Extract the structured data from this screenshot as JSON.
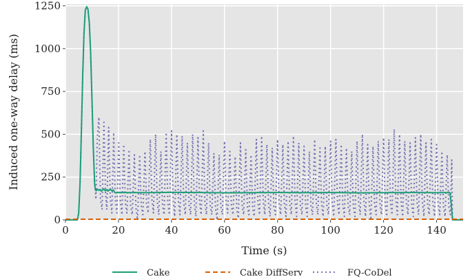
{
  "chart_data": {
    "type": "line",
    "title": "",
    "xlabel": "Time (s)",
    "ylabel": "Induced one-way delay (ms)",
    "xlim": [
      0,
      150
    ],
    "ylim": [
      0,
      1260
    ],
    "xticks": [
      0,
      20,
      40,
      60,
      80,
      100,
      120,
      140
    ],
    "yticks": [
      0,
      250,
      500,
      750,
      1000,
      1250
    ],
    "grid": true,
    "background": "#e5e5e5",
    "legend_position": "bottom",
    "series": [
      {
        "name": "Cake",
        "color": "#1b9e77",
        "style": "solid",
        "points": [
          [
            0,
            0
          ],
          [
            4.5,
            0
          ],
          [
            5,
            40
          ],
          [
            5.5,
            220
          ],
          [
            6,
            520
          ],
          [
            6.5,
            840
          ],
          [
            7,
            1090
          ],
          [
            7.5,
            1225
          ],
          [
            8,
            1245
          ],
          [
            8.5,
            1230
          ],
          [
            9,
            1150
          ],
          [
            9.5,
            980
          ],
          [
            10,
            700
          ],
          [
            10.5,
            420
          ],
          [
            11,
            210
          ],
          [
            11.3,
            175
          ],
          [
            11.6,
            170
          ],
          [
            12,
            180
          ],
          [
            12.5,
            172
          ],
          [
            13,
            178
          ],
          [
            13.5,
            168
          ],
          [
            14,
            175
          ],
          [
            14.5,
            180
          ],
          [
            15,
            170
          ],
          [
            15.5,
            176
          ],
          [
            16,
            168
          ],
          [
            16.5,
            174
          ],
          [
            17,
            178
          ],
          [
            17.5,
            170
          ],
          [
            18,
            175
          ],
          [
            18.5,
            162
          ],
          [
            19,
            158
          ],
          [
            20,
            160
          ],
          [
            30,
            159
          ],
          [
            40,
            161
          ],
          [
            50,
            160
          ],
          [
            60,
            158
          ],
          [
            70,
            159
          ],
          [
            80,
            160
          ],
          [
            90,
            159
          ],
          [
            100,
            160
          ],
          [
            110,
            158
          ],
          [
            120,
            159
          ],
          [
            130,
            160
          ],
          [
            140,
            159
          ],
          [
            145,
            160
          ],
          [
            145.5,
            100
          ],
          [
            146,
            0
          ],
          [
            150,
            0
          ]
        ]
      },
      {
        "name": "Cake DiffServ",
        "color": "#d95f02",
        "style": "dashed",
        "points": [
          [
            0,
            4
          ],
          [
            150,
            4
          ]
        ]
      },
      {
        "name": "FQ-CoDel",
        "color": "#7570b3",
        "style": "dotted",
        "points": [
          [
            0,
            0
          ],
          [
            4.5,
            0
          ],
          [
            5,
            40
          ],
          [
            5.5,
            220
          ],
          [
            6,
            520
          ],
          [
            6.5,
            840
          ],
          [
            7,
            1090
          ],
          [
            7.5,
            1225
          ],
          [
            8,
            1245
          ],
          [
            8.5,
            1230
          ],
          [
            9,
            1150
          ],
          [
            9.5,
            980
          ],
          [
            10,
            700
          ],
          [
            10.5,
            420
          ],
          [
            11,
            230
          ],
          [
            11.5,
            120
          ],
          [
            12,
            480
          ],
          [
            12.6,
            600
          ],
          [
            13.2,
            120
          ],
          [
            13.8,
            60
          ],
          [
            14.5,
            570
          ],
          [
            15.1,
            160
          ],
          [
            15.6,
            60
          ],
          [
            16.3,
            540
          ],
          [
            16.9,
            130
          ],
          [
            17.5,
            40
          ],
          [
            18.2,
            510
          ],
          [
            18.8,
            120
          ],
          [
            19.4,
            40
          ],
          [
            20.1,
            450
          ],
          [
            20.7,
            110
          ],
          [
            21.3,
            30
          ],
          [
            22,
            440
          ],
          [
            22.6,
            100
          ],
          [
            23.2,
            40
          ],
          [
            24,
            410
          ],
          [
            24.6,
            80
          ],
          [
            25.2,
            30
          ],
          [
            26,
            380
          ],
          [
            26.6,
            70
          ],
          [
            27.2,
            0
          ],
          [
            28,
            380
          ],
          [
            28.6,
            80
          ],
          [
            29.2,
            30
          ],
          [
            30,
            400
          ],
          [
            30.6,
            90
          ],
          [
            31.2,
            40
          ],
          [
            32,
            470
          ],
          [
            32.6,
            120
          ],
          [
            33.2,
            40
          ],
          [
            34,
            500
          ],
          [
            34.6,
            110
          ],
          [
            35.2,
            30
          ],
          [
            36,
            400
          ],
          [
            36.6,
            90
          ],
          [
            37.2,
            30
          ],
          [
            38,
            510
          ],
          [
            38.6,
            100
          ],
          [
            39.2,
            30
          ],
          [
            40,
            520
          ],
          [
            40.6,
            120
          ],
          [
            41.2,
            20
          ],
          [
            42,
            500
          ],
          [
            42.6,
            110
          ],
          [
            43.2,
            30
          ],
          [
            44,
            490
          ],
          [
            44.6,
            100
          ],
          [
            45.2,
            30
          ],
          [
            46,
            450
          ],
          [
            46.6,
            90
          ],
          [
            47.2,
            30
          ],
          [
            48,
            500
          ],
          [
            48.6,
            100
          ],
          [
            49.2,
            20
          ],
          [
            50,
            480
          ],
          [
            50.6,
            110
          ],
          [
            51.2,
            30
          ],
          [
            52,
            520
          ],
          [
            52.6,
            100
          ],
          [
            53.2,
            30
          ],
          [
            54,
            450
          ],
          [
            54.6,
            90
          ],
          [
            55.2,
            30
          ],
          [
            56,
            390
          ],
          [
            56.6,
            70
          ],
          [
            57.2,
            0
          ],
          [
            58,
            380
          ],
          [
            58.6,
            80
          ],
          [
            59.2,
            30
          ],
          [
            60,
            460
          ],
          [
            60.6,
            100
          ],
          [
            61.2,
            40
          ],
          [
            62,
            400
          ],
          [
            62.6,
            80
          ],
          [
            63.2,
            30
          ],
          [
            64,
            370
          ],
          [
            64.6,
            70
          ],
          [
            65.2,
            10
          ],
          [
            66,
            450
          ],
          [
            66.6,
            90
          ],
          [
            67.2,
            30
          ],
          [
            68,
            410
          ],
          [
            68.6,
            80
          ],
          [
            69.2,
            30
          ],
          [
            70,
            380
          ],
          [
            70.6,
            70
          ],
          [
            71.2,
            20
          ],
          [
            72,
            470
          ],
          [
            72.6,
            100
          ],
          [
            73.2,
            30
          ],
          [
            74,
            490
          ],
          [
            74.6,
            110
          ],
          [
            75.2,
            30
          ],
          [
            76,
            440
          ],
          [
            76.6,
            90
          ],
          [
            77.2,
            20
          ],
          [
            78,
            420
          ],
          [
            78.6,
            80
          ],
          [
            79.2,
            30
          ],
          [
            80,
            470
          ],
          [
            80.6,
            100
          ],
          [
            81.2,
            30
          ],
          [
            82,
            440
          ],
          [
            82.6,
            90
          ],
          [
            83.2,
            20
          ],
          [
            84,
            460
          ],
          [
            84.6,
            100
          ],
          [
            85.2,
            30
          ],
          [
            86,
            490
          ],
          [
            86.6,
            110
          ],
          [
            87.2,
            20
          ],
          [
            88,
            450
          ],
          [
            88.6,
            90
          ],
          [
            89.2,
            30
          ],
          [
            90,
            430
          ],
          [
            90.6,
            80
          ],
          [
            91.2,
            20
          ],
          [
            92,
            400
          ],
          [
            92.6,
            80
          ],
          [
            93.2,
            30
          ],
          [
            94,
            470
          ],
          [
            94.6,
            100
          ],
          [
            95.2,
            30
          ],
          [
            96,
            420
          ],
          [
            96.6,
            90
          ],
          [
            97.2,
            20
          ],
          [
            98,
            430
          ],
          [
            98.6,
            90
          ],
          [
            99.2,
            30
          ],
          [
            100,
            460
          ],
          [
            100.6,
            100
          ],
          [
            101.2,
            20
          ],
          [
            102,
            470
          ],
          [
            102.6,
            100
          ],
          [
            103.2,
            30
          ],
          [
            104,
            440
          ],
          [
            104.6,
            90
          ],
          [
            105.2,
            20
          ],
          [
            106,
            420
          ],
          [
            106.6,
            80
          ],
          [
            107.2,
            30
          ],
          [
            108,
            400
          ],
          [
            108.6,
            80
          ],
          [
            109.2,
            20
          ],
          [
            110,
            460
          ],
          [
            110.6,
            100
          ],
          [
            111.2,
            30
          ],
          [
            112,
            500
          ],
          [
            112.6,
            110
          ],
          [
            113.2,
            20
          ],
          [
            114,
            440
          ],
          [
            114.6,
            90
          ],
          [
            115.2,
            0
          ],
          [
            116,
            430
          ],
          [
            116.6,
            90
          ],
          [
            117.2,
            30
          ],
          [
            118,
            460
          ],
          [
            118.6,
            100
          ],
          [
            119.2,
            30
          ],
          [
            120,
            480
          ],
          [
            120.6,
            100
          ],
          [
            121.2,
            20
          ],
          [
            122,
            470
          ],
          [
            122.6,
            100
          ],
          [
            123.2,
            30
          ],
          [
            124,
            530
          ],
          [
            124.6,
            120
          ],
          [
            125.2,
            30
          ],
          [
            126,
            500
          ],
          [
            126.6,
            110
          ],
          [
            127.2,
            20
          ],
          [
            128,
            460
          ],
          [
            128.6,
            100
          ],
          [
            129.2,
            30
          ],
          [
            130,
            450
          ],
          [
            130.6,
            90
          ],
          [
            131.2,
            20
          ],
          [
            132,
            480
          ],
          [
            132.6,
            100
          ],
          [
            133.2,
            30
          ],
          [
            134,
            500
          ],
          [
            134.6,
            110
          ],
          [
            135.2,
            20
          ],
          [
            136,
            450
          ],
          [
            136.6,
            90
          ],
          [
            137.2,
            30
          ],
          [
            138,
            470
          ],
          [
            138.6,
            100
          ],
          [
            139.2,
            20
          ],
          [
            140,
            440
          ],
          [
            140.6,
            90
          ],
          [
            141.2,
            30
          ],
          [
            142,
            400
          ],
          [
            142.6,
            80
          ],
          [
            143.2,
            20
          ],
          [
            144,
            380
          ],
          [
            144.6,
            80
          ],
          [
            145.2,
            30
          ],
          [
            145.7,
            350
          ],
          [
            146,
            0
          ],
          [
            150,
            0
          ]
        ]
      }
    ]
  }
}
